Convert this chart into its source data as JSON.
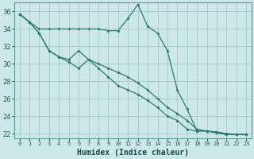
{
  "xlabel": "Humidex (Indice chaleur)",
  "background_color": "#cce8e8",
  "grid_color": "#aacccc",
  "line_color": "#2e7a6a",
  "xlim": [
    -0.5,
    23.5
  ],
  "ylim": [
    21.5,
    37.0
  ],
  "yticks": [
    22,
    24,
    26,
    28,
    30,
    32,
    34,
    36
  ],
  "xticks": [
    0,
    1,
    2,
    3,
    4,
    5,
    6,
    7,
    8,
    9,
    10,
    11,
    12,
    13,
    14,
    15,
    16,
    17,
    18,
    19,
    20,
    21,
    22,
    23
  ],
  "series": [
    [
      35.7,
      34.8,
      34.0,
      34.0,
      34.0,
      34.0,
      34.0,
      34.0,
      34.0,
      33.8,
      33.8,
      35.2,
      36.8,
      34.3,
      33.5,
      31.5,
      27.0,
      24.8,
      22.3,
      22.3,
      22.2,
      22.0,
      21.9,
      21.9
    ],
    [
      35.7,
      34.8,
      33.5,
      31.5,
      30.8,
      30.5,
      31.5,
      30.5,
      30.0,
      29.5,
      29.0,
      28.5,
      27.8,
      27.0,
      26.0,
      25.0,
      24.3,
      23.5,
      22.5,
      22.3,
      22.1,
      21.9,
      21.9,
      21.9
    ],
    [
      35.7,
      34.8,
      33.5,
      31.5,
      30.8,
      30.2,
      29.5,
      30.5,
      29.5,
      28.5,
      27.5,
      27.0,
      26.5,
      25.8,
      25.0,
      24.0,
      23.5,
      22.5,
      22.3,
      22.3,
      22.1,
      21.9,
      21.9,
      21.9
    ]
  ]
}
